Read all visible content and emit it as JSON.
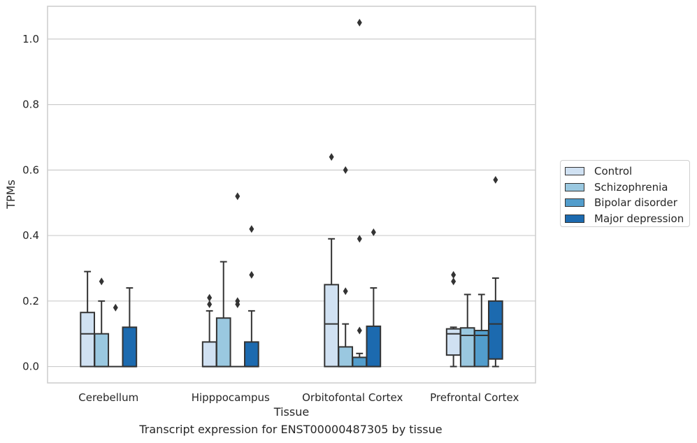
{
  "chart_data": {
    "type": "boxplot",
    "title": "",
    "xlabel": "Tissue",
    "ylabel": "TPMs",
    "caption": "Transcript expression for ENST00000487305 by tissue",
    "ylim": [
      -0.05,
      1.1
    ],
    "yticks": [
      "0.0",
      "0.2",
      "0.4",
      "0.6",
      "0.8",
      "1.0"
    ],
    "ytick_values": [
      0.0,
      0.2,
      0.4,
      0.6,
      0.8,
      1.0
    ],
    "grid": "horizontal",
    "legend_position": "right",
    "categories": [
      "Cerebellum",
      "Hipppocampus",
      "Orbitofontal Cortex",
      "Prefrontal Cortex"
    ],
    "series": [
      {
        "name": "Control",
        "color": "#d0e1f2",
        "boxes": [
          {
            "q1": 0.0,
            "median": 0.1,
            "q3": 0.165,
            "whisker_low": 0.0,
            "whisker_high": 0.29,
            "outliers": []
          },
          {
            "q1": 0.0,
            "median": 0.0,
            "q3": 0.075,
            "whisker_low": 0.0,
            "whisker_high": 0.17,
            "outliers": [
              0.19,
              0.21
            ]
          },
          {
            "q1": 0.0,
            "median": 0.13,
            "q3": 0.25,
            "whisker_low": 0.0,
            "whisker_high": 0.39,
            "outliers": [
              0.64
            ]
          },
          {
            "q1": 0.035,
            "median": 0.1,
            "q3": 0.115,
            "whisker_low": 0.0,
            "whisker_high": 0.12,
            "outliers": [
              0.26,
              0.28
            ]
          }
        ]
      },
      {
        "name": "Schizophrenia",
        "color": "#9ac8e0",
        "boxes": [
          {
            "q1": 0.0,
            "median": 0.0,
            "q3": 0.1,
            "whisker_low": 0.0,
            "whisker_high": 0.2,
            "outliers": [
              0.26
            ]
          },
          {
            "q1": 0.0,
            "median": 0.0,
            "q3": 0.148,
            "whisker_low": 0.0,
            "whisker_high": 0.32,
            "outliers": []
          },
          {
            "q1": 0.0,
            "median": 0.0,
            "q3": 0.06,
            "whisker_low": 0.0,
            "whisker_high": 0.13,
            "outliers": [
              0.23,
              0.6
            ]
          },
          {
            "q1": 0.0,
            "median": 0.095,
            "q3": 0.118,
            "whisker_low": 0.0,
            "whisker_high": 0.22,
            "outliers": []
          }
        ]
      },
      {
        "name": "Bipolar disorder",
        "color": "#529dcc",
        "boxes": [
          {
            "q1": 0.0,
            "median": 0.0,
            "q3": 0.0,
            "whisker_low": 0.0,
            "whisker_high": 0.0,
            "outliers": [
              0.18
            ]
          },
          {
            "q1": 0.0,
            "median": 0.0,
            "q3": 0.0,
            "whisker_low": 0.0,
            "whisker_high": 0.0,
            "outliers": [
              0.19,
              0.2,
              0.52
            ]
          },
          {
            "q1": 0.0,
            "median": 0.0,
            "q3": 0.028,
            "whisker_low": 0.0,
            "whisker_high": 0.04,
            "outliers": [
              0.11,
              0.39,
              1.05
            ]
          },
          {
            "q1": 0.0,
            "median": 0.095,
            "q3": 0.11,
            "whisker_low": 0.0,
            "whisker_high": 0.22,
            "outliers": []
          }
        ]
      },
      {
        "name": "Major depression",
        "color": "#1c6aaf",
        "boxes": [
          {
            "q1": 0.0,
            "median": 0.0,
            "q3": 0.12,
            "whisker_low": 0.0,
            "whisker_high": 0.24,
            "outliers": []
          },
          {
            "q1": 0.0,
            "median": 0.0,
            "q3": 0.075,
            "whisker_low": 0.0,
            "whisker_high": 0.17,
            "outliers": [
              0.28,
              0.42
            ]
          },
          {
            "q1": 0.0,
            "median": 0.0,
            "q3": 0.123,
            "whisker_low": 0.0,
            "whisker_high": 0.24,
            "outliers": [
              0.41
            ]
          },
          {
            "q1": 0.023,
            "median": 0.13,
            "q3": 0.2,
            "whisker_low": 0.0,
            "whisker_high": 0.27,
            "outliers": [
              0.57
            ]
          }
        ]
      }
    ]
  },
  "colors": {
    "grid": "#cccccc",
    "frame": "#cccccc",
    "edge": "#333333",
    "background": "#ffffff"
  }
}
